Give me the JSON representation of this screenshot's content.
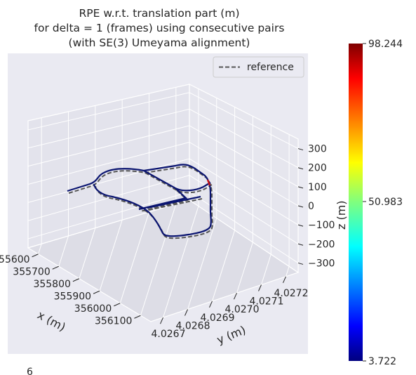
{
  "chart_data": {
    "type": "line",
    "projection": "3d",
    "title_lines": [
      "RPE w.r.t. translation part (m)",
      "for delta = 1 (frames) using consecutive pairs",
      "(with SE(3) Umeyama alignment)"
    ],
    "xlabel": "x (m)",
    "ylabel": "y (m)",
    "zlabel": "z (m)",
    "x_ticks": [
      "355600",
      "355700",
      "355800",
      "355900",
      "356000",
      "356100"
    ],
    "y_ticks": [
      "4.0267",
      "4.0268",
      "4.0269",
      "4.0270",
      "4.0271",
      "4.0272"
    ],
    "z_ticks": [
      "300",
      "200",
      "100",
      "0",
      "−100",
      "−200",
      "−300"
    ],
    "legend": {
      "position": "top-right",
      "entries": [
        "reference"
      ]
    },
    "colorbar": {
      "colormap": "jet",
      "min": 3.722,
      "max": 98.244,
      "mid": 50.983,
      "labels": [
        "98.244",
        "50.983",
        "3.722"
      ]
    },
    "corner_text": "6",
    "colors": {
      "reference": "#555555",
      "trajectory": "#0a1470",
      "error_peak": "#cc1111",
      "pane": "#eaeaf2",
      "grid": "#ffffff"
    }
  }
}
